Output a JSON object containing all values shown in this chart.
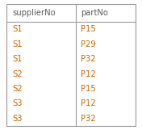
{
  "headers": [
    "supplierNo",
    "partNo"
  ],
  "rows": [
    [
      "S1",
      "P15"
    ],
    [
      "S1",
      "P29"
    ],
    [
      "S1",
      "P32"
    ],
    [
      "S2",
      "P12"
    ],
    [
      "S2",
      "P15"
    ],
    [
      "S3",
      "P12"
    ],
    [
      "S3",
      "P32"
    ]
  ],
  "header_color": "#5b5b5b",
  "data_color": "#cc6600",
  "border_color": "#999999",
  "bg_color": "#ffffff",
  "header_fontsize": 7.2,
  "data_fontsize": 7.2,
  "figsize": [
    1.76,
    1.61
  ],
  "dpi": 100
}
